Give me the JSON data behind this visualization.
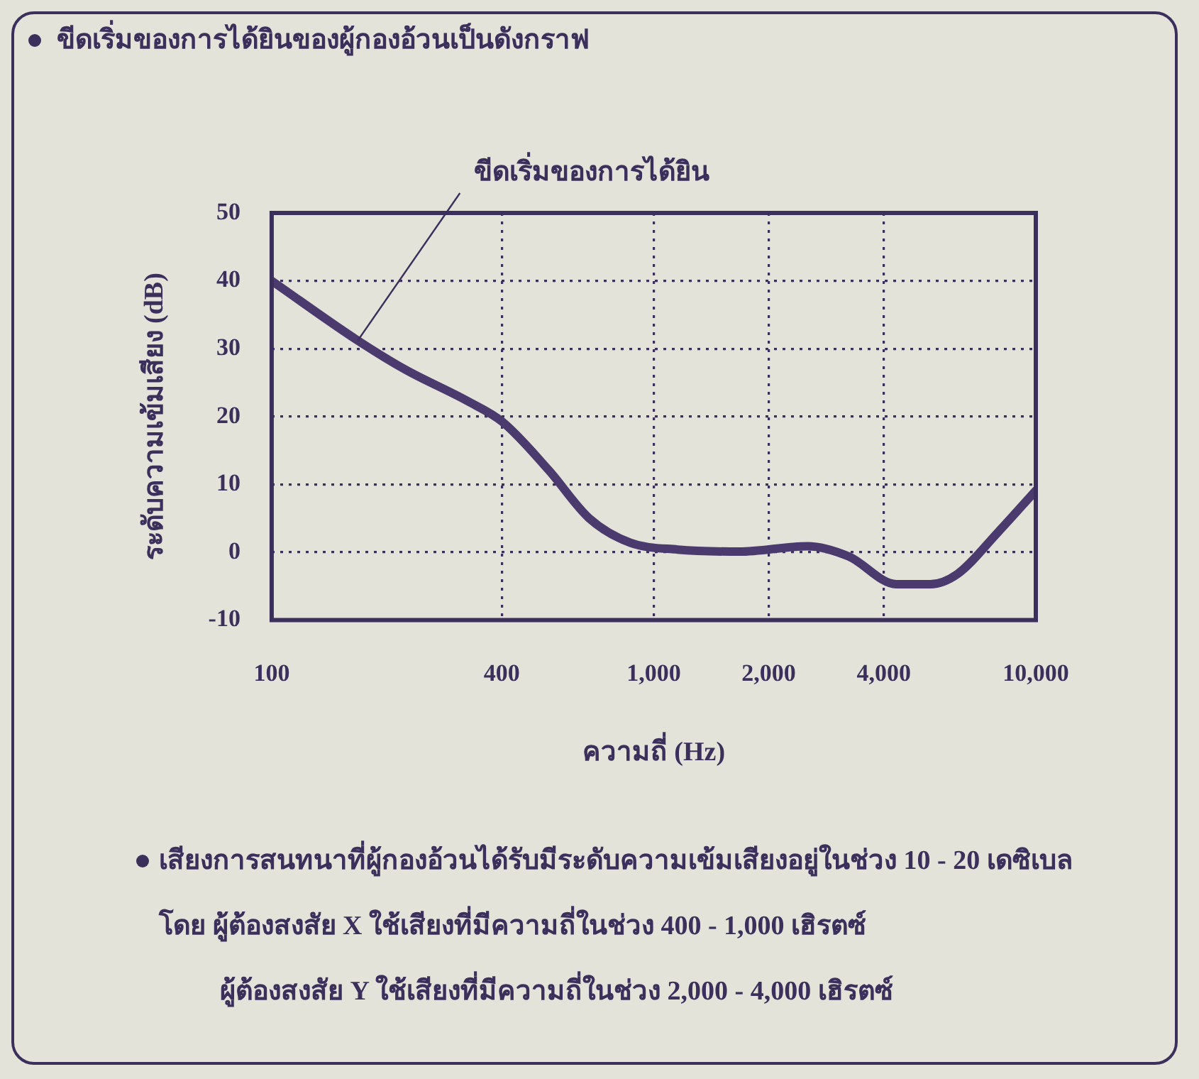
{
  "chart_data": {
    "type": "line",
    "title": "ขีดเริ่มของการได้ยินของผู้กองอ้วนเป็นดังกราฟ",
    "xlabel": "ความถี่ (Hz)",
    "ylabel": "ระดับความเข้มเสียง (dB)",
    "x": [
      100,
      168,
      224,
      325,
      402,
      531,
      678,
      869,
      1155,
      1674,
      2525,
      3236,
      4315,
      5297,
      6237,
      7976,
      10000
    ],
    "series": [
      {
        "color": "#4a3a6e",
        "values": [
          40,
          31.2,
          26.9,
          22.3,
          19.2,
          12.1,
          5,
          1.4,
          0.4,
          0.1,
          0.9,
          -0.6,
          -4.7,
          -4.7,
          -3.2,
          3,
          9.1
        ]
      }
    ],
    "log": "x",
    "xlim": [
      100,
      10000
    ],
    "xticks": [
      100,
      400,
      {
        "value": 1000,
        "label": "1,000"
      },
      {
        "value": 2000,
        "label": "2,000"
      },
      {
        "value": 4000,
        "label": "4,000"
      },
      {
        "value": 10000,
        "label": "10,000"
      }
    ],
    "ylim": [
      -10,
      50
    ],
    "yticks": [
      -10,
      0,
      10,
      20,
      30,
      40,
      50
    ],
    "grid": true,
    "legend": false,
    "marker": "none",
    "line_style": "solid",
    "annotations": [
      {
        "text": "ขีดเริ่มของการได้ยิน",
        "x": 168,
        "y": 31.2
      },
      "เสียงการสนทนาที่ผู้กองอ้วนได้รับมีระดับความเข้มเสียงอยู่ในช่วง 10 - 20 เดซิเบล",
      "โดย  ผู้ต้องสงสัย X ใช้เสียงที่มีความถี่ในช่วง 400 - 1,000 เฮิรตซ์",
      "ผู้ต้องสงสัย Y ใช้เสียงที่มีความถี่ในช่วง 2,000 - 4,000 เฮิรตซ์"
    ]
  }
}
